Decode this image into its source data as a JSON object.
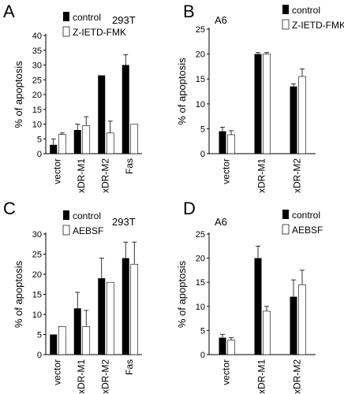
{
  "chart_data": [
    {
      "panel": "A",
      "cell_line": "293T",
      "type": "bar",
      "ylabel": "% of apoptosis",
      "ylim": [
        0,
        40
      ],
      "yticks": [
        0,
        5,
        10,
        15,
        20,
        25,
        30,
        35,
        40
      ],
      "categories": [
        "vector",
        "xDR-M1",
        "xDR-M2",
        "Fas"
      ],
      "legend_position": "top-right",
      "series": [
        {
          "name": "control",
          "fill": "#000000",
          "values": [
            3,
            8,
            26.5,
            30
          ],
          "errors": [
            2,
            2,
            0,
            3.5
          ]
        },
        {
          "name": "Z-IETD-FMK",
          "fill": "#ffffff",
          "values": [
            6.5,
            9.5,
            7,
            10
          ],
          "errors": [
            0.5,
            3,
            4,
            0
          ]
        }
      ]
    },
    {
      "panel": "B",
      "cell_line": "A6",
      "type": "bar",
      "ylabel": "% of apoptosis",
      "ylim": [
        0,
        25
      ],
      "yticks": [
        0,
        5,
        10,
        15,
        20,
        25
      ],
      "categories": [
        "vector",
        "xDR-M1",
        "xDR-M2"
      ],
      "legend_position": "top-right",
      "series": [
        {
          "name": "control",
          "fill": "#000000",
          "values": [
            4.5,
            20,
            13.5
          ],
          "errors": [
            0.8,
            0.3,
            0.5
          ]
        },
        {
          "name": "Z-IETD-FMK",
          "fill": "#ffffff",
          "values": [
            3.8,
            20,
            15.5
          ],
          "errors": [
            0.8,
            0.3,
            1.5
          ]
        }
      ]
    },
    {
      "panel": "C",
      "cell_line": "293T",
      "type": "bar",
      "ylabel": "% of apoptosis",
      "ylim": [
        0,
        30
      ],
      "yticks": [
        0,
        5,
        10,
        15,
        20,
        25,
        30
      ],
      "categories": [
        "vector",
        "xDR-M1",
        "xDR-M2",
        "Fas"
      ],
      "legend_position": "top-left",
      "series": [
        {
          "name": "control",
          "fill": "#000000",
          "values": [
            5,
            11.5,
            19,
            24
          ],
          "errors": [
            0,
            4,
            5,
            4
          ]
        },
        {
          "name": "AEBSF",
          "fill": "#ffffff",
          "values": [
            7,
            7,
            18,
            22.5
          ],
          "errors": [
            0,
            4,
            0,
            5.5
          ]
        }
      ]
    },
    {
      "panel": "D",
      "cell_line": "A6",
      "type": "bar",
      "ylabel": "% of apoptosis",
      "ylim": [
        0,
        25
      ],
      "yticks": [
        0,
        5,
        10,
        15,
        20,
        25
      ],
      "categories": [
        "vector",
        "xDR-M1",
        "xDR-M2"
      ],
      "legend_position": "top-right",
      "series": [
        {
          "name": "control",
          "fill": "#000000",
          "values": [
            3.5,
            20,
            12
          ],
          "errors": [
            0.7,
            2.5,
            3.5
          ]
        },
        {
          "name": "AEBSF",
          "fill": "#ffffff",
          "values": [
            3,
            9,
            14.5
          ],
          "errors": [
            0.5,
            1,
            3
          ]
        }
      ]
    }
  ]
}
